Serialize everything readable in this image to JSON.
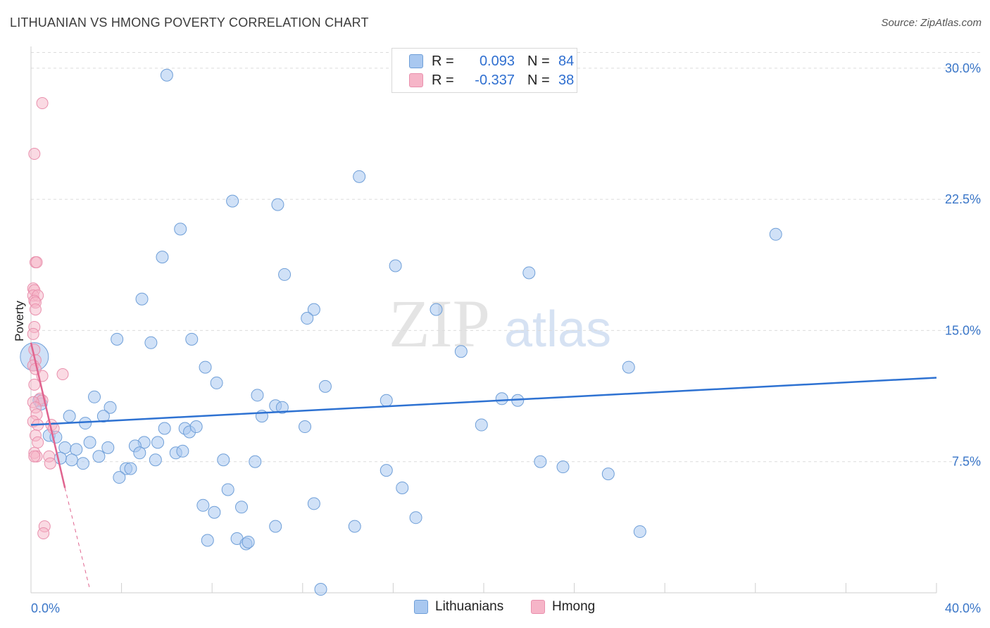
{
  "title": "LITHUANIAN VS HMONG POVERTY CORRELATION CHART",
  "source": "Source: ZipAtlas.com",
  "watermark": {
    "zip": "ZIP",
    "atlas": "atlas"
  },
  "colors": {
    "lithuanians_fill": "#a9c8f0",
    "lithuanians_stroke": "#6f9fd8",
    "lithuanians_line": "#2e72d2",
    "hmong_fill": "#f6b5c8",
    "hmong_stroke": "#e990ad",
    "hmong_line": "#e0648f",
    "tick_text": "#3a76c8",
    "grid": "#dcdcdc"
  },
  "legend": {
    "rows": [
      {
        "r_label": "R =",
        "r_value": "0.093",
        "n_label": "N =",
        "n_value": "84"
      },
      {
        "r_label": "R =",
        "r_value": "-0.337",
        "n_label": "N =",
        "n_value": "38"
      }
    ]
  },
  "chart_data": {
    "type": "scatter",
    "title": "LITHUANIAN VS HMONG POVERTY CORRELATION CHART",
    "xlabel": "",
    "ylabel": "Poverty",
    "xlim": [
      0,
      40
    ],
    "ylim": [
      0,
      31
    ],
    "x_tick_labels": [
      "0.0%",
      "40.0%"
    ],
    "y_ticks": [
      7.5,
      15.0,
      22.5,
      30.0
    ],
    "y_tick_labels": [
      "7.5%",
      "15.0%",
      "22.5%",
      "30.0%"
    ],
    "grid": true,
    "legend_position": "top-center",
    "series": [
      {
        "name": "Lithuanians",
        "r": 0.093,
        "n": 84,
        "trend": {
          "x": [
            0,
            40
          ],
          "y": [
            9.6,
            12.3
          ]
        },
        "points": [
          [
            6.0,
            29.6
          ],
          [
            14.5,
            23.8
          ],
          [
            8.9,
            22.4
          ],
          [
            10.9,
            22.2
          ],
          [
            6.6,
            20.8
          ],
          [
            5.8,
            19.2
          ],
          [
            16.1,
            18.7
          ],
          [
            11.2,
            18.2
          ],
          [
            22.0,
            18.3
          ],
          [
            32.9,
            20.5
          ],
          [
            4.9,
            16.8
          ],
          [
            12.5,
            16.2
          ],
          [
            12.2,
            15.7
          ],
          [
            17.9,
            16.2
          ],
          [
            3.8,
            14.5
          ],
          [
            5.3,
            14.3
          ],
          [
            7.1,
            14.5
          ],
          [
            19.0,
            13.8
          ],
          [
            7.7,
            12.9
          ],
          [
            26.4,
            12.9
          ],
          [
            8.2,
            12.0
          ],
          [
            13.0,
            11.8
          ],
          [
            2.8,
            11.2
          ],
          [
            10.0,
            11.3
          ],
          [
            15.7,
            11.0
          ],
          [
            20.8,
            11.1
          ],
          [
            21.5,
            11.0
          ],
          [
            3.5,
            10.6
          ],
          [
            10.8,
            10.7
          ],
          [
            11.1,
            10.6
          ],
          [
            3.2,
            10.1
          ],
          [
            10.2,
            10.1
          ],
          [
            1.7,
            10.1
          ],
          [
            2.4,
            9.7
          ],
          [
            6.8,
            9.4
          ],
          [
            7.0,
            9.2
          ],
          [
            5.9,
            9.4
          ],
          [
            7.3,
            9.5
          ],
          [
            12.1,
            9.5
          ],
          [
            19.9,
            9.6
          ],
          [
            0.8,
            9.0
          ],
          [
            1.1,
            8.9
          ],
          [
            2.6,
            8.6
          ],
          [
            5.0,
            8.6
          ],
          [
            5.6,
            8.6
          ],
          [
            1.5,
            8.3
          ],
          [
            2.0,
            8.2
          ],
          [
            3.4,
            8.3
          ],
          [
            4.6,
            8.4
          ],
          [
            4.8,
            8.0
          ],
          [
            6.4,
            8.0
          ],
          [
            6.7,
            8.1
          ],
          [
            3.0,
            7.8
          ],
          [
            1.8,
            7.6
          ],
          [
            1.3,
            7.7
          ],
          [
            2.3,
            7.4
          ],
          [
            5.5,
            7.6
          ],
          [
            8.5,
            7.6
          ],
          [
            9.9,
            7.5
          ],
          [
            22.5,
            7.5
          ],
          [
            23.5,
            7.2
          ],
          [
            25.5,
            6.8
          ],
          [
            4.2,
            7.1
          ],
          [
            4.4,
            7.1
          ],
          [
            3.9,
            6.6
          ],
          [
            15.7,
            7.0
          ],
          [
            8.7,
            5.9
          ],
          [
            16.4,
            6.0
          ],
          [
            7.6,
            5.0
          ],
          [
            9.3,
            4.9
          ],
          [
            12.5,
            5.1
          ],
          [
            8.1,
            4.6
          ],
          [
            17.0,
            4.3
          ],
          [
            10.8,
            3.8
          ],
          [
            14.3,
            3.8
          ],
          [
            26.9,
            3.5
          ],
          [
            7.8,
            3.0
          ],
          [
            9.1,
            3.1
          ],
          [
            9.5,
            2.8
          ],
          [
            9.6,
            2.9
          ],
          [
            12.8,
            0.2
          ],
          [
            0.15,
            13.5
          ],
          [
            0.35,
            11.0
          ],
          [
            0.45,
            10.8
          ]
        ]
      },
      {
        "name": "Hmong",
        "r": -0.337,
        "n": 38,
        "trend": {
          "x": [
            0,
            1.5
          ],
          "y": [
            14.3,
            6.0
          ]
        },
        "trend_dashed": {
          "x": [
            1.5,
            2.6
          ],
          "y": [
            6.0,
            0.2
          ]
        },
        "points": [
          [
            0.5,
            28.0
          ],
          [
            0.15,
            25.1
          ],
          [
            0.2,
            18.9
          ],
          [
            0.25,
            18.9
          ],
          [
            0.1,
            17.4
          ],
          [
            0.15,
            17.3
          ],
          [
            0.1,
            17.0
          ],
          [
            0.3,
            17.0
          ],
          [
            0.15,
            16.7
          ],
          [
            0.2,
            16.6
          ],
          [
            0.2,
            16.2
          ],
          [
            0.15,
            15.2
          ],
          [
            0.1,
            14.8
          ],
          [
            0.15,
            13.9
          ],
          [
            0.2,
            13.3
          ],
          [
            0.1,
            13.0
          ],
          [
            0.2,
            12.8
          ],
          [
            0.5,
            12.4
          ],
          [
            1.4,
            12.5
          ],
          [
            0.15,
            11.9
          ],
          [
            0.4,
            11.1
          ],
          [
            0.5,
            11.0
          ],
          [
            0.1,
            10.9
          ],
          [
            0.2,
            10.6
          ],
          [
            0.25,
            10.2
          ],
          [
            0.1,
            9.8
          ],
          [
            0.3,
            9.6
          ],
          [
            0.9,
            9.6
          ],
          [
            1.0,
            9.4
          ],
          [
            0.2,
            9.0
          ],
          [
            0.3,
            8.6
          ],
          [
            0.15,
            8.0
          ],
          [
            0.25,
            7.8
          ],
          [
            0.15,
            7.8
          ],
          [
            0.8,
            7.8
          ],
          [
            0.85,
            7.4
          ],
          [
            0.6,
            3.8
          ],
          [
            0.55,
            3.4
          ]
        ]
      }
    ]
  }
}
